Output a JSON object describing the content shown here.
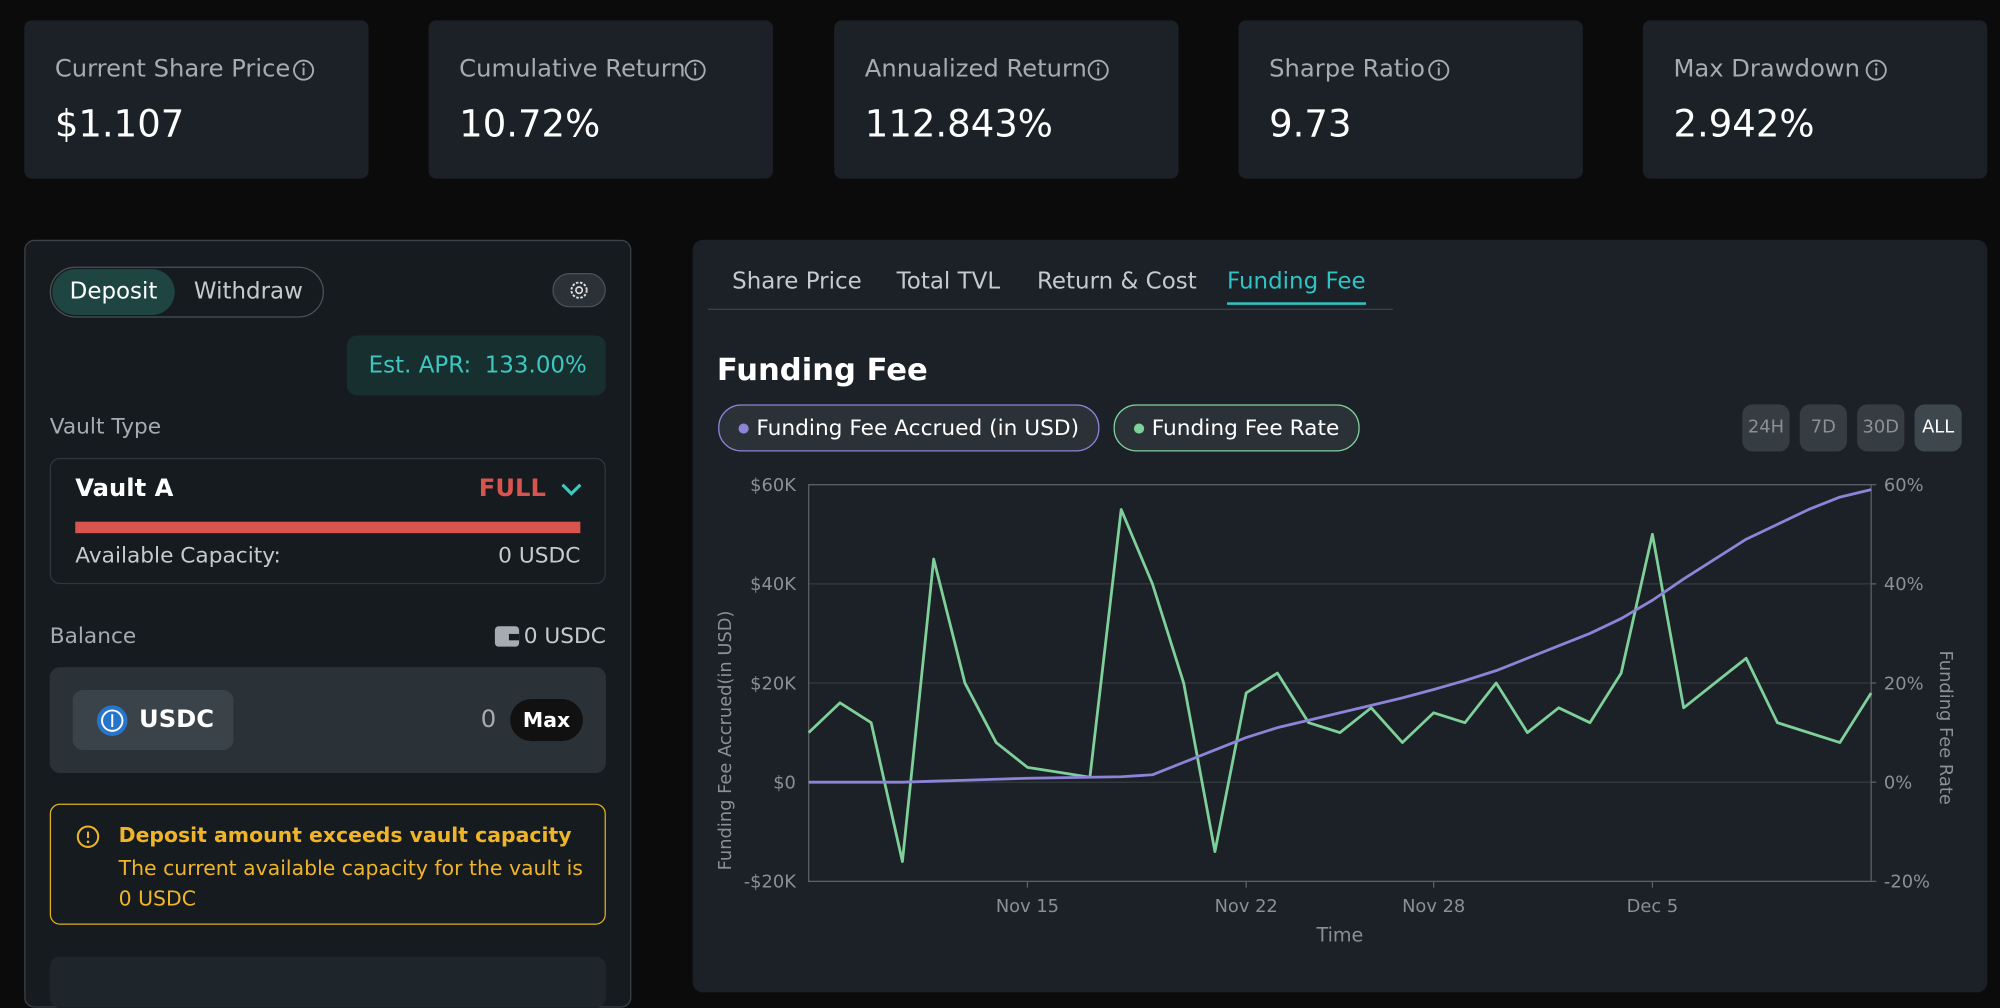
{
  "stats": [
    {
      "label": "Current Share Price",
      "value": "$1.107"
    },
    {
      "label": "Cumulative Return",
      "value": "10.72%"
    },
    {
      "label": "Annualized Return",
      "value": "112.843%"
    },
    {
      "label": "Sharpe Ratio",
      "value": "9.73"
    },
    {
      "label": "Max Drawdown",
      "value": "2.942%"
    }
  ],
  "deposit": {
    "tabs": [
      "Deposit",
      "Withdraw"
    ],
    "apr_label": "Est. APR:",
    "apr_value": "133.00%",
    "vault_type_label": "Vault Type",
    "vault_name": "Vault A",
    "vault_status": "FULL",
    "capacity_label": "Available Capacity:",
    "capacity_value": "0 USDC",
    "balance_label": "Balance",
    "balance_value": "0 USDC",
    "token": "USDC",
    "amount": "0",
    "max": "Max",
    "warning_title": "Deposit amount exceeds vault capacity",
    "warning_text": "The current available capacity for the vault is 0 USDC"
  },
  "chart_tabs": [
    "Share Price",
    "Total TVL",
    "Return & Cost",
    "Funding Fee"
  ],
  "ranges": [
    "24H",
    "7D",
    "30D",
    "ALL"
  ],
  "chart_data": {
    "type": "line",
    "title": "Funding Fee",
    "xlabel": "Time",
    "ylabel": "Funding Fee Accrued(in USD)",
    "y2label": "Funding Fee Rate",
    "grid": true,
    "x": [
      "Nov 8",
      "Nov 9",
      "Nov 10",
      "Nov 11",
      "Nov 12",
      "Nov 13",
      "Nov 14",
      "Nov 15",
      "Nov 16",
      "Nov 17",
      "Nov 18",
      "Nov 19",
      "Nov 20",
      "Nov 21",
      "Nov 22",
      "Nov 23",
      "Nov 24",
      "Nov 25",
      "Nov 26",
      "Nov 27",
      "Nov 28",
      "Nov 29",
      "Nov 30",
      "Dec 1",
      "Dec 2",
      "Dec 3",
      "Dec 4",
      "Dec 5",
      "Dec 6",
      "Dec 7",
      "Dec 8",
      "Dec 9",
      "Dec 10",
      "Dec 11",
      "Dec 12"
    ],
    "xticks": [
      "Nov 15",
      "Nov 22",
      "Nov 28",
      "Dec 5"
    ],
    "ylim": [
      -20000,
      60000
    ],
    "yticks": [
      {
        "value": -20000,
        "label": "-$20K"
      },
      {
        "value": 0,
        "label": "$0"
      },
      {
        "value": 20000,
        "label": "$20K"
      },
      {
        "value": 40000,
        "label": "$40K"
      },
      {
        "value": 60000,
        "label": "$60K"
      }
    ],
    "y2lim": [
      -20,
      60
    ],
    "y2ticks": [
      {
        "value": -20,
        "label": "-20%"
      },
      {
        "value": 0,
        "label": "0%"
      },
      {
        "value": 20,
        "label": "20%"
      },
      {
        "value": 40,
        "label": "40%"
      },
      {
        "value": 60,
        "label": "60%"
      }
    ],
    "series": [
      {
        "name": "Funding Fee Accrued (in USD)",
        "color": "#8b84d7",
        "values": [
          0,
          0,
          0,
          0,
          200,
          400,
          600,
          800,
          900,
          1000,
          1100,
          1500,
          4000,
          6500,
          9000,
          11000,
          12500,
          14000,
          15500,
          17000,
          18700,
          20500,
          22500,
          25000,
          27500,
          30000,
          33000,
          36700,
          41000,
          45000,
          49000,
          52000,
          55000,
          57500,
          59000
        ]
      },
      {
        "name": "Funding Fee Rate",
        "color": "#7fcf9a",
        "axis": "y2",
        "values": [
          10,
          16,
          12,
          -16,
          45,
          20,
          8,
          3,
          2,
          1,
          55,
          40,
          20,
          -14,
          18,
          22,
          12,
          10,
          15,
          8,
          14,
          12,
          20,
          10,
          15,
          12,
          22,
          50,
          15,
          20,
          25,
          12,
          10,
          8,
          18
        ]
      }
    ]
  }
}
